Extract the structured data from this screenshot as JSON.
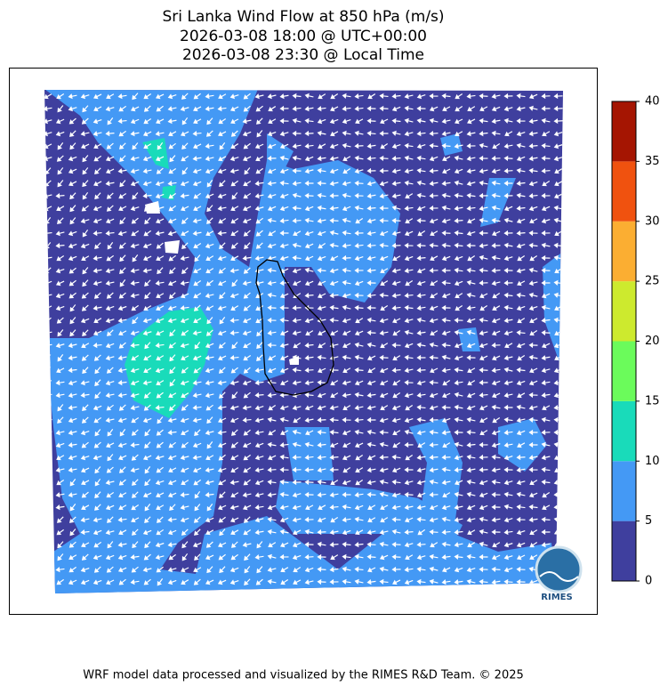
{
  "header": {
    "title_lines": [
      "Sri Lanka Wind Flow at 850 hPa (m/s)",
      "2026-03-08 18:00 @ UTC+00:00",
      "2026-03-08 23:30 @ Local Time"
    ]
  },
  "colorbar": {
    "lim": [
      0,
      40
    ],
    "ticks": [
      0,
      5,
      10,
      15,
      20,
      25,
      30,
      35,
      40
    ],
    "colors": [
      "#3f3f9e",
      "#4499f5",
      "#19dbba",
      "#6bfb5b",
      "#cdea2e",
      "#fbae32",
      "#f0520f",
      "#a51502"
    ]
  },
  "logo": {
    "label": "RIMES"
  },
  "footer": {
    "text": "WRF model data processed and visualized by the RIMES R&D Team. © 2025"
  }
}
